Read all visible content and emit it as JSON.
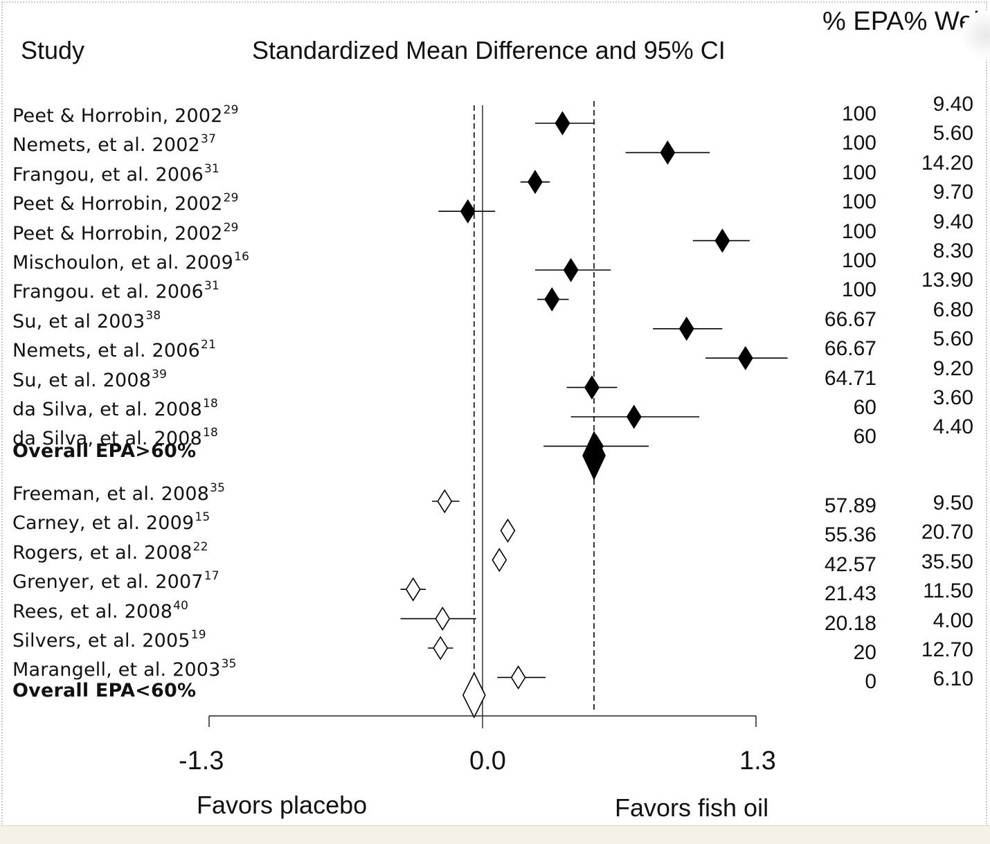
{
  "header": {
    "study_label": "Study",
    "title": "Standardized Mean Difference and 95% CI",
    "columns_label": "% EPA% Wei"
  },
  "chart_data": {
    "type": "forest",
    "title": "Standardized Mean Difference and 95% CI",
    "xlabel_left": "Favors placebo",
    "xlabel_right": "Favors fish oil",
    "xlim": [
      -1.3,
      1.3
    ],
    "xticks": [
      "-1.3",
      "0.0",
      "1.3"
    ],
    "reference_lines": {
      "null": 0.0,
      "overall_high": 0.53,
      "overall_low": -0.04
    },
    "groups": [
      {
        "name": "EPA>60%",
        "filled": true,
        "studies": [
          {
            "study": "Peet & Horrobin, 2002",
            "ref": "29",
            "smd": 0.38,
            "lo": 0.25,
            "hi": 0.53,
            "epa": "100",
            "weight": "9.40"
          },
          {
            "study": "Nemets, et al. 2002",
            "ref": "37",
            "smd": 0.88,
            "lo": 0.68,
            "hi": 1.08,
            "epa": "100",
            "weight": "5.60"
          },
          {
            "study": "Frangou, et al. 2006",
            "ref": "31",
            "smd": 0.25,
            "lo": 0.18,
            "hi": 0.32,
            "epa": "100",
            "weight": "14.20"
          },
          {
            "study": "Peet & Horrobin, 2002",
            "ref": "29",
            "smd": -0.07,
            "lo": -0.21,
            "hi": 0.06,
            "epa": "100",
            "weight": "9.70"
          },
          {
            "study": "Peet & Horrobin, 2002",
            "ref": "29",
            "smd": 1.14,
            "lo": 1.0,
            "hi": 1.27,
            "epa": "100",
            "weight": "9.40"
          },
          {
            "study": "Mischoulon, et al. 2009",
            "ref": "16",
            "smd": 0.42,
            "lo": 0.25,
            "hi": 0.61,
            "epa": "100",
            "weight": "8.30"
          },
          {
            "study": "Frangou. et al. 2006",
            "ref": "31",
            "smd": 0.33,
            "lo": 0.26,
            "hi": 0.41,
            "epa": "100",
            "weight": "13.90"
          },
          {
            "study": "Su, et al 2003",
            "ref": "38",
            "smd": 0.97,
            "lo": 0.81,
            "hi": 1.14,
            "epa": "66.67",
            "weight": "6.80"
          },
          {
            "study": "Nemets, et al. 2006",
            "ref": "21",
            "smd": 1.25,
            "lo": 1.06,
            "hi": 1.45,
            "epa": "66.67",
            "weight": "5.60"
          },
          {
            "study": "Su, et al. 2008",
            "ref": "39",
            "smd": 0.52,
            "lo": 0.4,
            "hi": 0.64,
            "epa": "64.71",
            "weight": "9.20"
          },
          {
            "study": "da Silva, et al. 2008",
            "ref": "18",
            "smd": 0.72,
            "lo": 0.42,
            "hi": 1.03,
            "epa": "60",
            "weight": "3.60"
          },
          {
            "study": "da Silva, et al. 2008",
            "ref": "18",
            "smd": 0.54,
            "lo": 0.29,
            "hi": 0.79,
            "epa": "60",
            "weight": "4.40"
          }
        ],
        "overall": {
          "label": "Overall EPA>60%",
          "smd": 0.53
        }
      },
      {
        "name": "EPA<60%",
        "filled": false,
        "studies": [
          {
            "study": "Freeman, et al. 2008",
            "ref": "35",
            "smd": -0.18,
            "lo": -0.24,
            "hi": -0.11,
            "epa": "57.89",
            "weight": "9.50"
          },
          {
            "study": "Carney, et al. 2009",
            "ref": "15",
            "smd": 0.12,
            "lo": 0.09,
            "hi": 0.15,
            "epa": "55.36",
            "weight": "20.70"
          },
          {
            "study": "Rogers, et al. 2008",
            "ref": "22",
            "smd": 0.08,
            "lo": 0.05,
            "hi": 0.11,
            "epa": "42.57",
            "weight": "35.50"
          },
          {
            "study": "Grenyer, et al. 2007",
            "ref": "17",
            "smd": -0.33,
            "lo": -0.39,
            "hi": -0.27,
            "epa": "21.43",
            "weight": "11.50"
          },
          {
            "study": "Rees, et al. 2008",
            "ref": "40",
            "smd": -0.19,
            "lo": -0.39,
            "hi": -0.03,
            "epa": "20.18",
            "weight": "4.00"
          },
          {
            "study": "Silvers, et al. 2005",
            "ref": "19",
            "smd": -0.2,
            "lo": -0.26,
            "hi": -0.14,
            "epa": "20",
            "weight": "12.70"
          },
          {
            "study": "Marangell, et al. 2003",
            "ref": "35",
            "smd": 0.17,
            "lo": 0.07,
            "hi": 0.3,
            "epa": "0",
            "weight": "6.10"
          }
        ],
        "overall": {
          "label": "Overall EPA<60%",
          "smd": -0.04
        }
      }
    ]
  }
}
